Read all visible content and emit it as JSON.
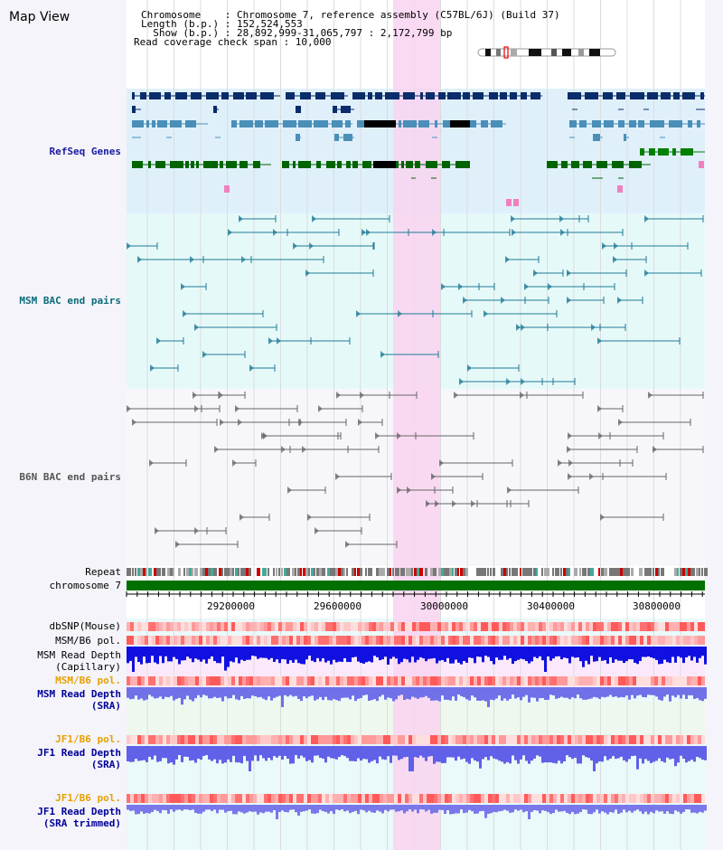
{
  "window": {
    "title": "Map View"
  },
  "header": {
    "lines": [
      "Chromosome    : Chromosome 7, reference assembly (C57BL/6J) (Build 37)",
      "Length (b.p.) : 152,524,553",
      "  Show (b.p.) : 28,892,999-31,065,797 : 2,172,799 bp",
      "Read coverage check span : 10,000"
    ]
  },
  "tracks": {
    "refseq_genes": "RefSeq Genes",
    "msm_bac": "MSM BAC end pairs",
    "b6n_bac": "B6N BAC end pairs",
    "repeat": "Repeat",
    "chromosome": "chromosome 7",
    "dbsnp": "dbSNP(Mouse)",
    "msm_b6_pol_1": "MSM/B6 pol.",
    "msm_read_depth_cap_1": "MSM Read Depth",
    "msm_read_depth_cap_2": "(Capillary)",
    "msm_b6_pol_2": "MSM/B6 pol.",
    "msm_read_depth_sra_1": "MSM Read Depth",
    "msm_read_depth_sra_2": "(SRA)",
    "jf1_b6_pol_1": "JF1/B6 pol.",
    "jf1_read_depth_sra_1": "JF1 Read Depth",
    "jf1_read_depth_sra_2": "(SRA)",
    "jf1_b6_pol_2": "JF1/B6 pol.",
    "jf1_read_depth_trim_1": "JF1 Read Depth",
    "jf1_read_depth_trim_2": "(SRA trimmed)"
  },
  "ruler": {
    "ticks": [
      "29200000",
      "29600000",
      "30000000",
      "30400000",
      "30800000"
    ]
  },
  "colors": {
    "refseq_label": "#1a1aa0",
    "msm_label": "#0b6b7a",
    "b6n_label": "#555555",
    "track_label_blue": "#000099",
    "track_label_orange": "#e8a000",
    "highlight": "#f9d4f0",
    "chromosome_bar": "#007000"
  }
}
